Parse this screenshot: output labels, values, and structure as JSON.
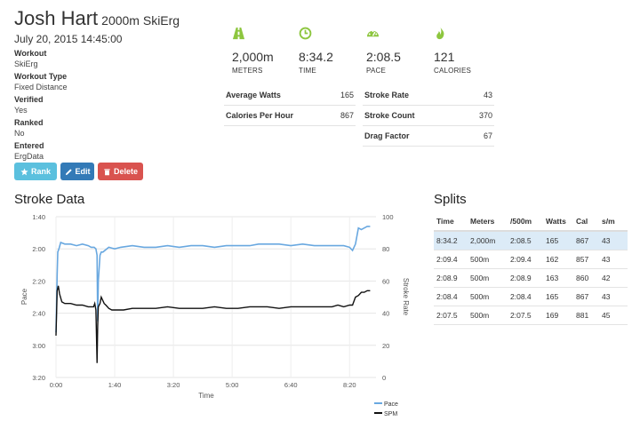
{
  "header": {
    "name": "Josh Hart",
    "subtitle": "2000m SkiErg",
    "date": "July 20, 2015 14:45:00"
  },
  "fields": [
    {
      "label": "Workout",
      "value": "SkiErg"
    },
    {
      "label": "Workout Type",
      "value": "Fixed Distance"
    },
    {
      "label": "Verified",
      "value": "Yes"
    },
    {
      "label": "Ranked",
      "value": "No"
    },
    {
      "label": "Entered",
      "value": "ErgData"
    }
  ],
  "buttons": {
    "rank": "Rank",
    "edit": "Edit",
    "delete": "Delete"
  },
  "stats": [
    {
      "value": "2,000m",
      "caption": "METERS",
      "icon": "road-icon"
    },
    {
      "value": "8:34.2",
      "caption": "TIME",
      "icon": "clock-icon"
    },
    {
      "value": "2:08.5",
      "caption": "PACE",
      "icon": "speedometer-icon"
    },
    {
      "value": "121",
      "caption": "CALORIES",
      "icon": "flame-icon"
    }
  ],
  "metrics_left": [
    {
      "label": "Average Watts",
      "value": "165"
    },
    {
      "label": "Calories Per Hour",
      "value": "867"
    }
  ],
  "metrics_right": [
    {
      "label": "Stroke Rate",
      "value": "43"
    },
    {
      "label": "Stroke Count",
      "value": "370"
    },
    {
      "label": "Drag Factor",
      "value": "67"
    }
  ],
  "colors": {
    "accent": "#8dc63f",
    "rank": "#5bc0de",
    "edit": "#337ab7",
    "delete": "#d9534f",
    "pace": "#69a8e0",
    "spm": "#111111"
  },
  "stroke_title": "Stroke Data",
  "splits": {
    "title": "Splits",
    "headers": [
      "Time",
      "Meters",
      "/500m",
      "Watts",
      "Cal",
      "s/m"
    ],
    "rows": [
      [
        "8:34.2",
        "2,000m",
        "2:08.5",
        "165",
        "867",
        "43"
      ],
      [
        "2:09.4",
        "500m",
        "2:09.4",
        "162",
        "857",
        "43"
      ],
      [
        "2:08.9",
        "500m",
        "2:08.9",
        "163",
        "860",
        "42"
      ],
      [
        "2:08.4",
        "500m",
        "2:08.4",
        "165",
        "867",
        "43"
      ],
      [
        "2:07.5",
        "500m",
        "2:07.5",
        "169",
        "881",
        "45"
      ]
    ]
  },
  "chart_data": {
    "type": "line",
    "xlabel": "Time",
    "ylabel": "Pace",
    "y2label": "Stroke Rate",
    "x_ticks": [
      "0:00",
      "1:40",
      "3:20",
      "5:00",
      "6:40",
      "8:20"
    ],
    "x_tick_seconds": [
      0,
      100,
      200,
      300,
      400,
      500
    ],
    "xlim": [
      0,
      545
    ],
    "y_ticks": [
      "1:40",
      "2:00",
      "2:20",
      "2:40",
      "3:00",
      "3:20"
    ],
    "ylim_seconds": [
      100,
      200
    ],
    "y2_ticks": [
      "100",
      "80",
      "60",
      "40",
      "20",
      "0"
    ],
    "y2lim": [
      0,
      100
    ],
    "legend": [
      "Pace",
      "SPM"
    ],
    "series": [
      {
        "name": "Pace",
        "axis": "left",
        "unit": "seconds per 500m",
        "x": [
          0,
          2,
          3,
          5,
          8,
          15,
          25,
          35,
          45,
          55,
          60,
          65,
          68,
          70,
          71,
          72,
          75,
          77,
          80,
          90,
          100,
          110,
          130,
          150,
          170,
          190,
          210,
          230,
          250,
          270,
          290,
          310,
          330,
          345,
          360,
          380,
          400,
          420,
          440,
          460,
          470,
          480,
          490,
          500,
          505,
          510,
          515,
          520,
          525,
          530,
          535
        ],
        "y": [
          172,
          136,
          122,
          120,
          116,
          117,
          117,
          118,
          117,
          118,
          119,
          119,
          120,
          124,
          165,
          140,
          124,
          122,
          122,
          119,
          120,
          119,
          118,
          119,
          119,
          118,
          119,
          118,
          118,
          119,
          118,
          118,
          118,
          117,
          117,
          117,
          118,
          117,
          118,
          118,
          118,
          118,
          118,
          119,
          121,
          117,
          107,
          108,
          107,
          106,
          106
        ]
      },
      {
        "name": "SPM",
        "axis": "right",
        "unit": "strokes per minute",
        "x": [
          0,
          2,
          4,
          6,
          10,
          15,
          25,
          35,
          45,
          55,
          60,
          64,
          66,
          68,
          70,
          71,
          72,
          75,
          77,
          82,
          85,
          90,
          95,
          105,
          115,
          130,
          150,
          170,
          190,
          210,
          230,
          250,
          270,
          290,
          310,
          330,
          345,
          360,
          380,
          400,
          420,
          440,
          460,
          470,
          480,
          490,
          500,
          505,
          510,
          515,
          520,
          525,
          530,
          535
        ],
        "y": [
          26,
          54,
          57,
          52,
          47,
          46,
          46,
          45,
          45,
          44,
          44,
          44,
          46,
          42,
          9,
          32,
          44,
          46,
          50,
          46,
          45,
          43,
          42,
          42,
          42,
          43,
          43,
          43,
          44,
          43,
          43,
          43,
          44,
          43,
          43,
          44,
          44,
          44,
          43,
          44,
          44,
          44,
          44,
          44,
          45,
          44,
          45,
          45,
          50,
          51,
          53,
          53,
          54,
          54
        ]
      }
    ]
  }
}
